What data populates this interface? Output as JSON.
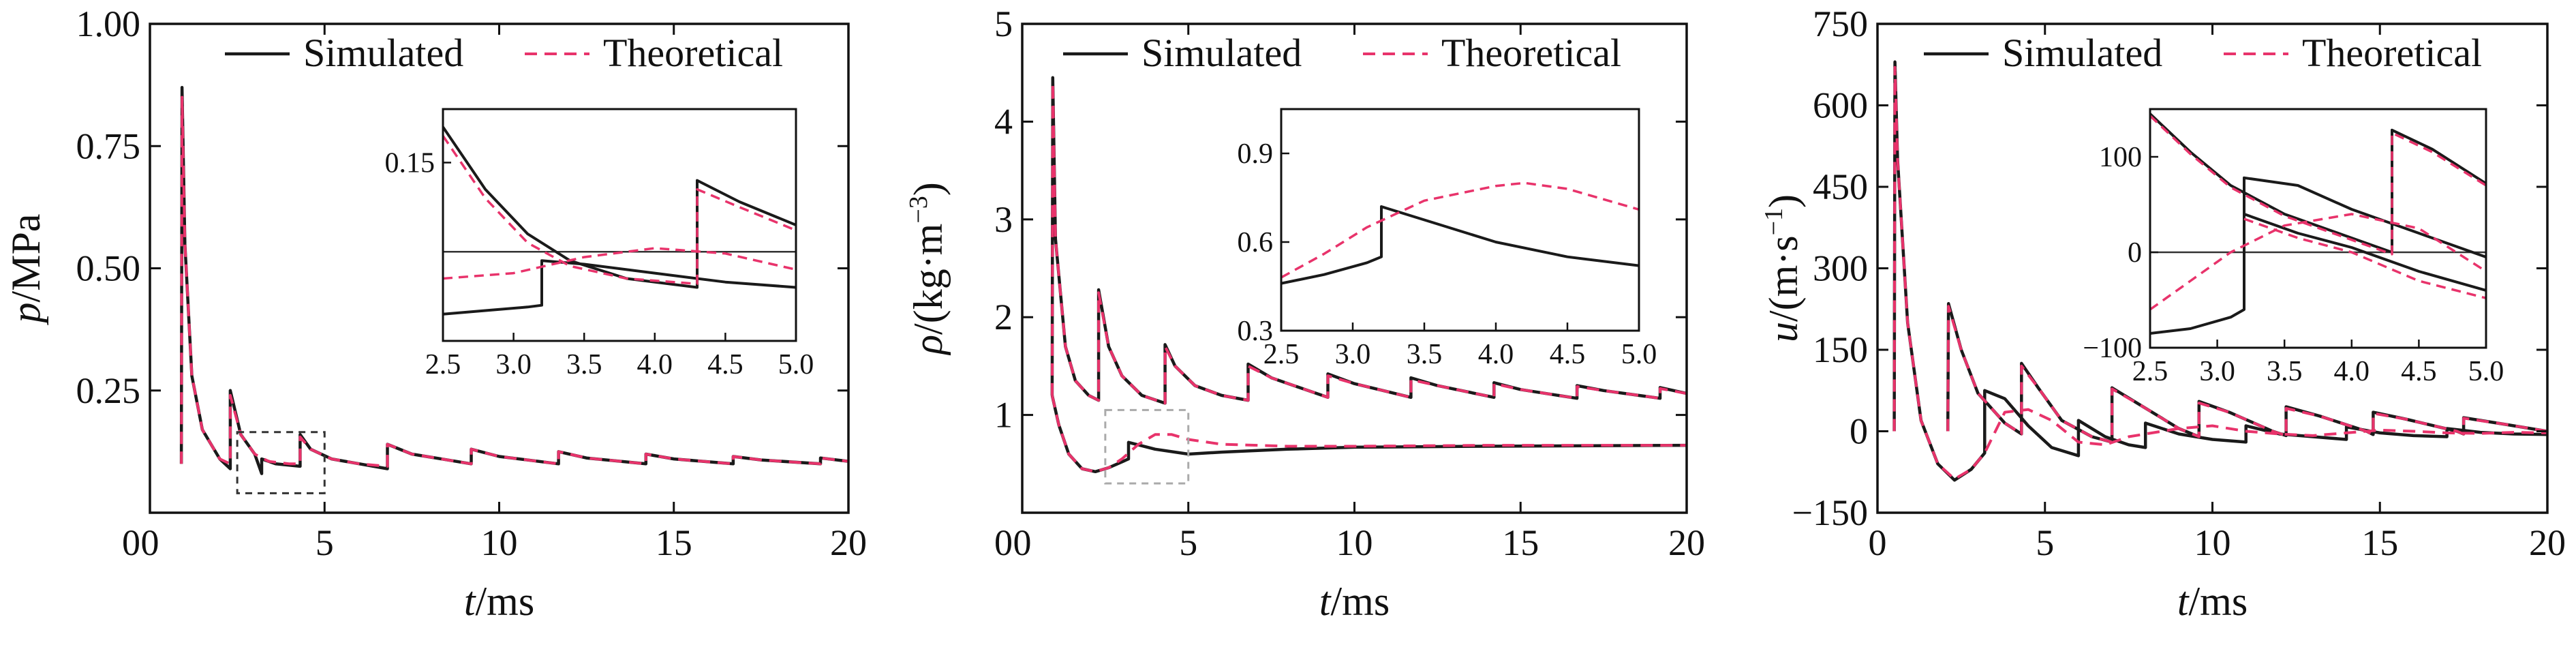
{
  "chart_data": [
    {
      "type": "line",
      "ylabel_var": "p",
      "ylabel_unit": "/MPa",
      "xlabel_var": "t",
      "xlabel_unit": "/ms",
      "xlim": [
        0,
        20
      ],
      "ylim": [
        0,
        1.0
      ],
      "xticks": [
        "0",
        "5",
        "10",
        "15",
        "20"
      ],
      "yticks": [
        "0.25",
        "0.50",
        "0.75",
        "1.00"
      ],
      "legend": {
        "placement": "top-right",
        "entries": [
          "Simulated",
          "Theoretical"
        ]
      },
      "series": [
        {
          "name": "Simulated",
          "style": "solid",
          "color": "#1a1a1a",
          "x": [
            0.9,
            0.92,
            1.0,
            1.2,
            1.5,
            2.0,
            2.3,
            2.3,
            2.6,
            3.0,
            3.2,
            3.2,
            3.6,
            4.3,
            4.3,
            4.6,
            5.2,
            6.0,
            6.8,
            6.8,
            7.5,
            9.2,
            9.2,
            10,
            11.7,
            11.7,
            12.5,
            14.2,
            14.2,
            15,
            16.7,
            16.7,
            17.5,
            19.2,
            19.2,
            20
          ],
          "y": [
            0.1,
            0.87,
            0.55,
            0.28,
            0.17,
            0.11,
            0.09,
            0.25,
            0.16,
            0.12,
            0.08,
            0.11,
            0.1,
            0.095,
            0.16,
            0.13,
            0.11,
            0.1,
            0.09,
            0.14,
            0.12,
            0.1,
            0.13,
            0.115,
            0.1,
            0.125,
            0.112,
            0.1,
            0.12,
            0.11,
            0.1,
            0.115,
            0.108,
            0.1,
            0.112,
            0.105
          ]
        },
        {
          "name": "Theoretical",
          "style": "dashed",
          "color": "#e8336b",
          "x": [
            0.9,
            0.92,
            1.0,
            1.2,
            1.5,
            2.0,
            2.3,
            2.3,
            2.6,
            3.0,
            3.4,
            4.0,
            4.3,
            4.3,
            4.6,
            5.2,
            6.0,
            6.8,
            6.8,
            7.5,
            9.2,
            9.2,
            10,
            11.7,
            11.7,
            12.5,
            14.2,
            14.2,
            15,
            16.7,
            16.7,
            17.5,
            19.2,
            19.2,
            20
          ],
          "y": [
            0.1,
            0.85,
            0.55,
            0.28,
            0.17,
            0.11,
            0.1,
            0.24,
            0.16,
            0.12,
            0.105,
            0.1,
            0.1,
            0.155,
            0.13,
            0.11,
            0.1,
            0.095,
            0.14,
            0.12,
            0.1,
            0.13,
            0.115,
            0.1,
            0.125,
            0.112,
            0.1,
            0.12,
            0.11,
            0.1,
            0.115,
            0.108,
            0.1,
            0.112,
            0.105
          ]
        }
      ],
      "inset": {
        "xlim": [
          2.5,
          5.0
        ],
        "ylim": [
          0.05,
          0.18
        ],
        "xticks": [
          "2.5",
          "3.0",
          "3.5",
          "4.0",
          "4.5",
          "5.0"
        ],
        "yticks": [
          "0.15"
        ],
        "series": [
          {
            "name": "Simulated",
            "x": [
              2.5,
              2.8,
              3.1,
              3.2,
              3.2,
              3.5,
              4.0,
              4.5,
              5.0
            ],
            "y": [
              0.065,
              0.067,
              0.069,
              0.07,
              0.095,
              0.093,
              0.088,
              0.083,
              0.08
            ]
          },
          {
            "name": "Simulated",
            "x": [
              2.5,
              2.8,
              3.1,
              3.4,
              3.8,
              4.3,
              4.3,
              4.6,
              5.0
            ],
            "y": [
              0.17,
              0.135,
              0.11,
              0.095,
              0.085,
              0.08,
              0.14,
              0.128,
              0.115
            ]
          },
          {
            "name": "Theoretical",
            "x": [
              2.5,
              2.8,
              3.1,
              3.4,
              3.8,
              4.3,
              4.3,
              4.6,
              5.0
            ],
            "y": [
              0.165,
              0.13,
              0.105,
              0.092,
              0.085,
              0.082,
              0.135,
              0.125,
              0.112
            ]
          },
          {
            "name": "Theoretical",
            "x": [
              2.5,
              3.0,
              3.5,
              4.0,
              4.5,
              5.0
            ],
            "y": [
              0.085,
              0.088,
              0.097,
              0.102,
              0.099,
              0.09
            ]
          }
        ],
        "reference_y": 0.1
      }
    },
    {
      "type": "line",
      "ylabel_var": "ρ",
      "ylabel_unit": "/(kg·m",
      "ylabel_sup": "−3",
      "ylabel_close": ")",
      "xlabel_var": "t",
      "xlabel_unit": "/ms",
      "xlim": [
        0,
        20
      ],
      "ylim": [
        0,
        5
      ],
      "xticks": [
        "0",
        "5",
        "10",
        "15",
        "20"
      ],
      "yticks": [
        "1",
        "2",
        "3",
        "4",
        "5"
      ],
      "legend": {
        "placement": "top-right",
        "entries": [
          "Simulated",
          "Theoretical"
        ]
      },
      "series": [
        {
          "name": "Simulated",
          "style": "solid",
          "color": "#1a1a1a",
          "x": [
            0.9,
            0.92,
            1.0,
            1.3,
            1.6,
            2.0,
            2.3,
            2.3,
            2.6,
            3.0,
            3.6,
            4.3,
            4.3,
            4.6,
            5.2,
            6.0,
            6.8,
            6.8,
            7.5,
            9.2,
            9.2,
            10,
            11.7,
            11.7,
            12.5,
            14.2,
            14.2,
            15,
            16.7,
            16.7,
            17.5,
            19.2,
            19.2,
            20
          ],
          "y": [
            1.2,
            4.45,
            2.8,
            1.7,
            1.35,
            1.2,
            1.15,
            2.28,
            1.7,
            1.4,
            1.2,
            1.12,
            1.72,
            1.5,
            1.3,
            1.2,
            1.15,
            1.52,
            1.38,
            1.18,
            1.42,
            1.32,
            1.18,
            1.38,
            1.3,
            1.18,
            1.33,
            1.26,
            1.17,
            1.3,
            1.25,
            1.17,
            1.28,
            1.22
          ]
        },
        {
          "name": "Simulated",
          "style": "solid",
          "color": "#1a1a1a",
          "x": [
            0.9,
            1.1,
            1.4,
            1.8,
            2.2,
            2.6,
            3.0,
            3.2,
            3.2,
            4.0,
            5.0,
            6.0,
            8.0,
            10,
            14,
            20
          ],
          "y": [
            1.2,
            0.9,
            0.6,
            0.45,
            0.42,
            0.46,
            0.52,
            0.55,
            0.72,
            0.65,
            0.6,
            0.62,
            0.65,
            0.67,
            0.68,
            0.69
          ]
        },
        {
          "name": "Theoretical",
          "style": "dashed",
          "color": "#e8336b",
          "x": [
            0.9,
            0.92,
            1.0,
            1.3,
            1.6,
            2.0,
            2.3,
            2.3,
            2.6,
            3.0,
            3.6,
            4.3,
            4.3,
            4.6,
            5.2,
            6.0,
            6.8,
            6.8,
            7.5,
            9.2,
            9.2,
            10,
            11.7,
            11.7,
            12.5,
            14.2,
            14.2,
            15,
            16.7,
            16.7,
            17.5,
            19.2,
            19.2,
            20
          ],
          "y": [
            1.2,
            4.4,
            2.8,
            1.7,
            1.35,
            1.2,
            1.15,
            2.25,
            1.7,
            1.4,
            1.2,
            1.12,
            1.7,
            1.5,
            1.3,
            1.2,
            1.15,
            1.5,
            1.38,
            1.18,
            1.4,
            1.32,
            1.18,
            1.36,
            1.3,
            1.18,
            1.32,
            1.26,
            1.17,
            1.29,
            1.25,
            1.17,
            1.27,
            1.22
          ]
        },
        {
          "name": "Theoretical",
          "style": "dashed",
          "color": "#e8336b",
          "x": [
            0.9,
            1.1,
            1.4,
            1.8,
            2.2,
            2.6,
            3.0,
            3.5,
            4.0,
            4.5,
            5.0,
            6.0,
            8.0,
            10,
            14,
            20
          ],
          "y": [
            1.2,
            0.9,
            0.6,
            0.45,
            0.42,
            0.46,
            0.55,
            0.7,
            0.8,
            0.8,
            0.75,
            0.7,
            0.68,
            0.68,
            0.69,
            0.69
          ]
        }
      ],
      "inset": {
        "xlim": [
          2.5,
          5.0
        ],
        "ylim": [
          0.3,
          1.05
        ],
        "xticks": [
          "2.5",
          "3.0",
          "3.5",
          "4.0",
          "4.5",
          "5.0"
        ],
        "yticks": [
          "0.3",
          "0.6",
          "0.9"
        ],
        "series": [
          {
            "name": "Simulated",
            "x": [
              2.5,
              2.8,
              3.1,
              3.2,
              3.2,
              3.6,
              4.0,
              4.5,
              5.0
            ],
            "y": [
              0.46,
              0.49,
              0.53,
              0.55,
              0.72,
              0.66,
              0.6,
              0.55,
              0.52
            ]
          },
          {
            "name": "Theoretical",
            "x": [
              2.5,
              2.8,
              3.1,
              3.5,
              4.0,
              4.2,
              4.5,
              5.0
            ],
            "y": [
              0.48,
              0.56,
              0.65,
              0.74,
              0.79,
              0.8,
              0.78,
              0.71
            ]
          }
        ]
      }
    },
    {
      "type": "line",
      "ylabel_var": "u",
      "ylabel_unit": "/(m·s",
      "ylabel_sup": "−1",
      "ylabel_close": ")",
      "xlabel_var": "t",
      "xlabel_unit": "/ms",
      "xlim": [
        0,
        20
      ],
      "ylim": [
        -150,
        750
      ],
      "xticks": [
        "0",
        "5",
        "10",
        "15",
        "20"
      ],
      "yticks": [
        "−150",
        "0",
        "150",
        "300",
        "450",
        "600",
        "750"
      ],
      "legend": {
        "placement": "top-right",
        "entries": [
          "Simulated",
          "Theoretical"
        ]
      },
      "series": [
        {
          "name": "Simulated",
          "style": "solid",
          "color": "#1a1a1a",
          "x": [
            0.5,
            0.52,
            0.6,
            0.9,
            1.3,
            1.8,
            2.3,
            2.8,
            3.2,
            3.2,
            3.8,
            4.5,
            5.2,
            6.0,
            6.0,
            6.8,
            7.5,
            8.0,
            8.0,
            9.0,
            10,
            11,
            11,
            12,
            13,
            14,
            14,
            15,
            16,
            17,
            17,
            18,
            19,
            20
          ],
          "y": [
            0,
            680,
            500,
            200,
            20,
            -60,
            -90,
            -70,
            -40,
            75,
            60,
            10,
            -30,
            -45,
            20,
            -10,
            -25,
            -30,
            15,
            -5,
            -15,
            -20,
            10,
            -5,
            -10,
            -15,
            8,
            -3,
            -8,
            -10,
            5,
            -2,
            -5,
            -6
          ]
        },
        {
          "name": "Simulated",
          "style": "solid",
          "color": "#1a1a1a",
          "x": [
            2.1,
            2.12,
            2.5,
            3.0,
            3.8,
            4.3,
            4.3,
            4.8,
            5.5,
            6.4,
            7.0,
            7.0,
            7.8,
            9.0,
            9.6,
            9.6,
            10.5,
            11.8,
            12.2,
            12.2,
            13.2,
            14.6,
            14.8,
            14.8,
            15.8,
            17.3,
            17.5,
            17.5,
            18.5,
            20
          ],
          "y": [
            0,
            235,
            150,
            70,
            15,
            -5,
            125,
            80,
            20,
            -10,
            -20,
            80,
            50,
            5,
            -10,
            55,
            35,
            0,
            -8,
            45,
            28,
            0,
            -6,
            35,
            22,
            0,
            -5,
            25,
            15,
            0
          ]
        },
        {
          "name": "Theoretical",
          "style": "dashed",
          "color": "#e8336b",
          "x": [
            0.5,
            0.52,
            0.6,
            0.9,
            1.3,
            1.8,
            2.3,
            2.8,
            3.2,
            3.8,
            4.5,
            5.2,
            6.0,
            6.8,
            7.5,
            8.0,
            9.0,
            10,
            11,
            12,
            13,
            14,
            15,
            16,
            17,
            18,
            19,
            20
          ],
          "y": [
            0,
            670,
            500,
            200,
            20,
            -60,
            -88,
            -70,
            -40,
            35,
            40,
            20,
            -20,
            -25,
            -10,
            -5,
            5,
            10,
            0,
            -5,
            -8,
            -3,
            2,
            0,
            -3,
            -4,
            -2,
            -3
          ]
        },
        {
          "name": "Theoretical",
          "style": "dashed",
          "color": "#e8336b",
          "x": [
            2.1,
            2.12,
            2.5,
            3.0,
            3.8,
            4.3,
            4.3,
            4.8,
            5.5,
            6.4,
            7.0,
            7.0,
            7.8,
            9.0,
            9.6,
            9.6,
            10.5,
            11.8,
            12.2,
            12.2,
            13.2,
            14.6,
            14.8,
            14.8,
            15.8,
            17.3,
            17.5,
            17.5,
            18.5,
            20
          ],
          "y": [
            0,
            230,
            150,
            70,
            15,
            -5,
            120,
            80,
            20,
            -10,
            -20,
            78,
            50,
            5,
            -10,
            52,
            35,
            0,
            -8,
            42,
            28,
            0,
            -6,
            33,
            22,
            0,
            -5,
            24,
            15,
            0
          ]
        }
      ],
      "inset": {
        "xlim": [
          2.5,
          5.0
        ],
        "ylim": [
          -100,
          150
        ],
        "xticks": [
          "2.5",
          "3.0",
          "3.5",
          "4.0",
          "4.5",
          "5.0"
        ],
        "yticks": [
          "−100",
          "0",
          "100"
        ],
        "series": [
          {
            "name": "Simulated",
            "x": [
              2.5,
              2.8,
              3.1,
              3.2,
              3.2,
              3.6,
              4.0,
              4.5,
              5.0
            ],
            "y": [
              -85,
              -80,
              -68,
              -60,
              78,
              70,
              45,
              20,
              -5
            ]
          },
          {
            "name": "Simulated",
            "x": [
              2.5,
              2.8,
              3.1,
              3.5,
              4.0,
              4.3,
              4.3,
              4.6,
              5.0
            ],
            "y": [
              145,
              105,
              70,
              40,
              15,
              0,
              128,
              108,
              72
            ]
          },
          {
            "name": "Simulated",
            "x": [
              3.2,
              3.6,
              4.0,
              4.5,
              5.0
            ],
            "y": [
              40,
              20,
              5,
              -20,
              -40
            ]
          },
          {
            "name": "Theoretical",
            "x": [
              2.5,
              2.8,
              3.1,
              3.5,
              4.0,
              4.3,
              4.3,
              4.6,
              5.0
            ],
            "y": [
              143,
              103,
              68,
              38,
              13,
              -2,
              125,
              105,
              70
            ]
          },
          {
            "name": "Theoretical",
            "x": [
              2.5,
              2.8,
              3.1,
              3.5,
              4.0,
              4.5,
              5.0
            ],
            "y": [
              -60,
              -30,
              0,
              28,
              40,
              25,
              -20
            ]
          },
          {
            "name": "Theoretical",
            "x": [
              3.2,
              3.6,
              4.0,
              4.5,
              5.0
            ],
            "y": [
              35,
              15,
              0,
              -30,
              -48
            ]
          }
        ],
        "reference_y": 0
      }
    }
  ]
}
